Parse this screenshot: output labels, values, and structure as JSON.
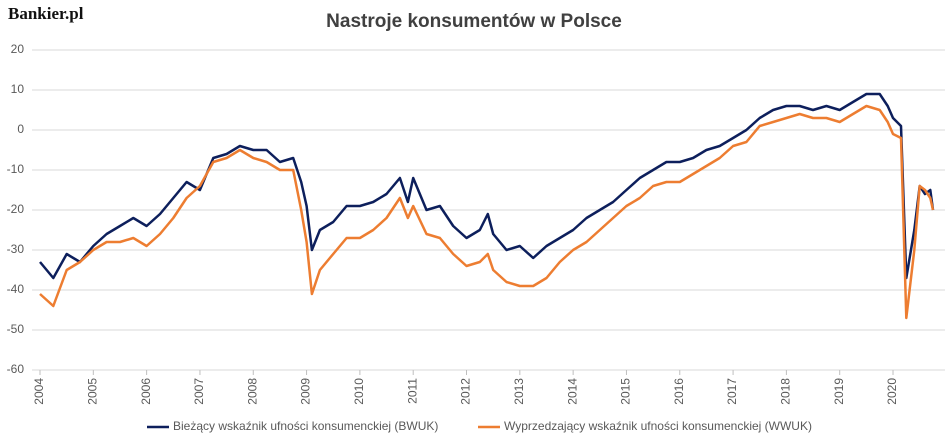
{
  "brand": "Bankier.pl",
  "chart_data": {
    "type": "line",
    "title": "Nastroje konsumentów w Polsce",
    "x": [
      2004,
      2004.25,
      2004.5,
      2004.75,
      2005,
      2005.25,
      2005.5,
      2005.75,
      2006,
      2006.25,
      2006.5,
      2006.75,
      2007,
      2007.25,
      2007.5,
      2007.75,
      2008,
      2008.25,
      2008.5,
      2008.75,
      2008.9,
      2009,
      2009.1,
      2009.25,
      2009.5,
      2009.75,
      2010,
      2010.25,
      2010.5,
      2010.75,
      2010.9,
      2011,
      2011.25,
      2011.5,
      2011.75,
      2012,
      2012.25,
      2012.4,
      2012.5,
      2012.75,
      2013,
      2013.25,
      2013.5,
      2013.75,
      2014,
      2014.25,
      2014.5,
      2014.75,
      2015,
      2015.25,
      2015.5,
      2015.75,
      2016,
      2016.25,
      2016.5,
      2016.75,
      2017,
      2017.25,
      2017.5,
      2017.75,
      2018,
      2018.25,
      2018.5,
      2018.75,
      2019,
      2019.25,
      2019.5,
      2019.75,
      2019.9,
      2020,
      2020.15,
      2020.25,
      2020.4,
      2020.5,
      2020.6,
      2020.7,
      2020.75
    ],
    "series": [
      {
        "name": "Bieżący wskaźnik ufności konsumenckiej (BWUK)",
        "color": "#0d1f5c",
        "values": [
          -33,
          -37,
          -31,
          -33,
          -29,
          -26,
          -24,
          -22,
          -24,
          -21,
          -17,
          -13,
          -15,
          -7,
          -6,
          -4,
          -5,
          -5,
          -8,
          -7,
          -13,
          -19,
          -30,
          -25,
          -23,
          -19,
          -19,
          -18,
          -16,
          -12,
          -18,
          -12,
          -20,
          -19,
          -24,
          -27,
          -25,
          -21,
          -26,
          -30,
          -29,
          -32,
          -29,
          -27,
          -25,
          -22,
          -20,
          -18,
          -15,
          -12,
          -10,
          -8,
          -8,
          -7,
          -5,
          -4,
          -2,
          0,
          3,
          5,
          6,
          6,
          5,
          6,
          5,
          7,
          9,
          9,
          6,
          3,
          1,
          -37,
          -25,
          -14,
          -16,
          -15,
          -20
        ]
      },
      {
        "name": "Wyprzedzający wskaźnik ufności konsumenckiej (WWUK)",
        "color": "#ed7d31",
        "values": [
          -41,
          -44,
          -35,
          -33,
          -30,
          -28,
          -28,
          -27,
          -29,
          -26,
          -22,
          -17,
          -14,
          -8,
          -7,
          -5,
          -7,
          -8,
          -10,
          -10,
          -20,
          -28,
          -41,
          -35,
          -31,
          -27,
          -27,
          -25,
          -22,
          -17,
          -22,
          -19,
          -26,
          -27,
          -31,
          -34,
          -33,
          -31,
          -35,
          -38,
          -39,
          -39,
          -37,
          -33,
          -30,
          -28,
          -25,
          -22,
          -19,
          -17,
          -14,
          -13,
          -13,
          -11,
          -9,
          -7,
          -4,
          -3,
          1,
          2,
          3,
          4,
          3,
          3,
          2,
          4,
          6,
          5,
          2,
          -1,
          -2,
          -47,
          -30,
          -14,
          -15,
          -17,
          -20
        ]
      }
    ],
    "xlim": [
      2004,
      2020.9
    ],
    "xticks": [
      2004,
      2005,
      2006,
      2007,
      2008,
      2009,
      2010,
      2011,
      2012,
      2013,
      2014,
      2015,
      2016,
      2017,
      2018,
      2019,
      2020
    ],
    "ylim": [
      -60,
      20
    ],
    "yticks": [
      -60,
      -50,
      -40,
      -30,
      -20,
      -10,
      0,
      10,
      20
    ],
    "grid": true,
    "legend": "bottom"
  }
}
